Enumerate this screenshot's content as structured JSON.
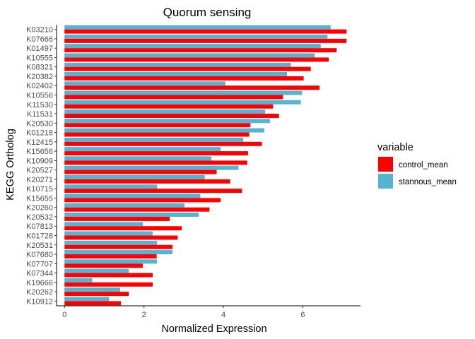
{
  "chart_data": {
    "type": "bar",
    "orientation": "horizontal",
    "title": "Quorum sensing",
    "xlabel": "Normalized Expression",
    "ylabel": "KEGG Ortholog",
    "xlim": [
      -0.2,
      7.45
    ],
    "xticks": [
      0,
      2,
      4,
      6
    ],
    "grid": false,
    "legend": {
      "title": "variable",
      "position": "right"
    },
    "categories": [
      "K03210",
      "K07666",
      "K01497",
      "K10555",
      "K08321",
      "K20382",
      "K02402",
      "K10556",
      "K11530",
      "K11531",
      "K20530",
      "K01218",
      "K12415",
      "K15656",
      "K10909",
      "K20527",
      "K20271",
      "K10715",
      "K15655",
      "K20260",
      "K20532",
      "K07813",
      "K01728",
      "K20531",
      "K07680",
      "K07707",
      "K07344",
      "K19666",
      "K20262",
      "K10912"
    ],
    "series": [
      {
        "name": "control_mean",
        "color": "#ff0000",
        "values": [
          7.1,
          7.1,
          6.85,
          6.65,
          6.2,
          6.02,
          6.42,
          5.5,
          5.25,
          5.4,
          4.68,
          4.65,
          4.97,
          4.62,
          4.6,
          3.83,
          4.17,
          4.47,
          3.93,
          3.65,
          2.65,
          2.95,
          2.85,
          2.72,
          2.32,
          1.97,
          2.22,
          2.22,
          1.62,
          1.42
        ]
      },
      {
        "name": "stannous_mean",
        "color": "#56b4d3",
        "values": [
          6.7,
          6.62,
          6.45,
          6.3,
          5.7,
          5.6,
          4.05,
          5.98,
          5.95,
          5.05,
          5.17,
          5.03,
          4.5,
          3.93,
          3.7,
          4.38,
          3.53,
          2.33,
          3.42,
          3.02,
          3.38,
          1.97,
          2.22,
          2.33,
          2.72,
          2.33,
          1.62,
          0.7,
          1.4,
          1.12
        ]
      }
    ]
  }
}
